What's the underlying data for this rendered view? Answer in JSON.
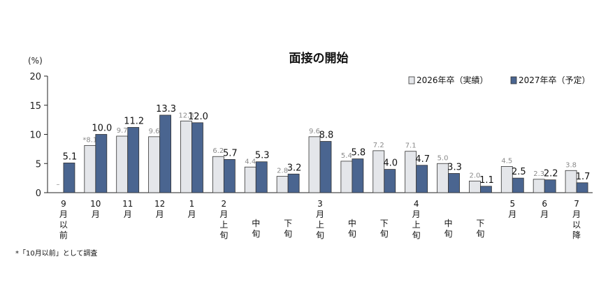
{
  "chart_data": {
    "type": "bar",
    "title": "面接の開始",
    "y_unit": "(%)",
    "ylim": [
      0,
      20
    ],
    "yticks": [
      "0",
      "5",
      "10",
      "15",
      "20"
    ],
    "legend_position": "top-right",
    "categories": [
      [
        "9",
        "月",
        "以",
        "前"
      ],
      [
        "10",
        "月"
      ],
      [
        "11",
        "月"
      ],
      [
        "12",
        "月"
      ],
      [
        "1",
        "月"
      ],
      [
        "2",
        "月",
        "上",
        "旬"
      ],
      [
        "中",
        "旬"
      ],
      [
        "下",
        "旬"
      ],
      [
        "3",
        "月",
        "上",
        "旬"
      ],
      [
        "中",
        "旬"
      ],
      [
        "下",
        "旬"
      ],
      [
        "4",
        "月",
        "上",
        "旬"
      ],
      [
        "中",
        "旬"
      ],
      [
        "下",
        "旬"
      ],
      [
        "5",
        "月"
      ],
      [
        "6",
        "月"
      ],
      [
        "7",
        "月",
        "以",
        "降"
      ]
    ],
    "series": [
      {
        "name": "2026年卒（実績）",
        "color": "#e4e6ea",
        "values": [
          null,
          8.1,
          9.7,
          9.6,
          12.3,
          6.2,
          4.4,
          2.8,
          9.6,
          5.4,
          7.2,
          7.1,
          5.0,
          2.0,
          4.5,
          2.3,
          3.8
        ],
        "labels": [
          "–",
          "*8.1",
          "9.7",
          "9.6",
          "12.3",
          "6.2",
          "4.4",
          "2.8",
          "9.6",
          "5.4",
          "7.2",
          "7.1",
          "5.0",
          "2.0",
          "4.5",
          "2.3",
          "3.8"
        ]
      },
      {
        "name": "2027年卒（予定）",
        "color": "#4a6590",
        "values": [
          5.1,
          10.0,
          11.2,
          13.3,
          12.0,
          5.7,
          5.3,
          3.2,
          8.8,
          5.8,
          4.0,
          4.7,
          3.3,
          1.1,
          2.5,
          2.2,
          1.7
        ],
        "labels": [
          "5.1",
          "10.0",
          "11.2",
          "13.3",
          "12.0",
          "5.7",
          "5.3",
          "3.2",
          "8.8",
          "5.8",
          "4.0",
          "4.7",
          "3.3",
          "1.1",
          "2.5",
          "2.2",
          "1.7"
        ]
      }
    ],
    "footnote": "*「10月以前」として調査"
  }
}
